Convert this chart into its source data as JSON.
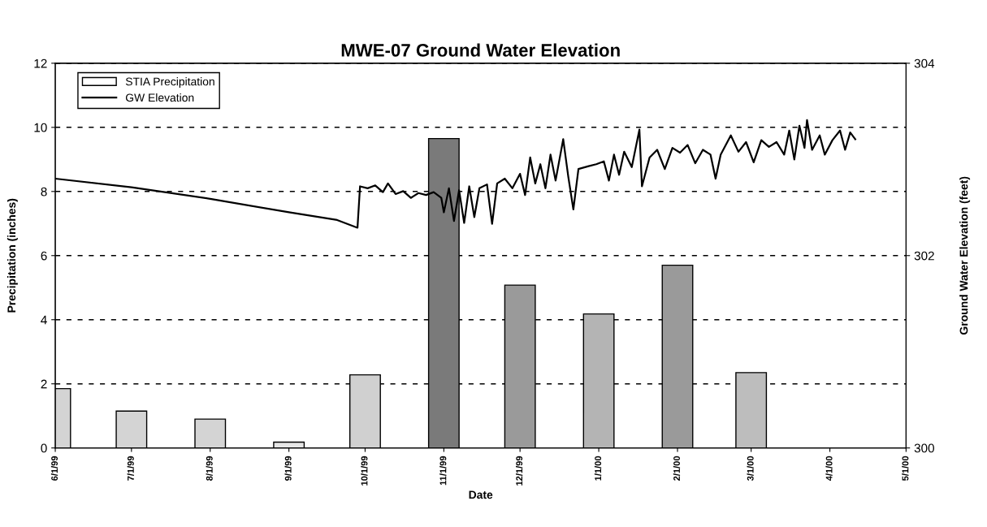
{
  "chart_data": {
    "type": "bar",
    "title": "MWE-07 Ground Water Elevation",
    "xlabel": "Date",
    "ylabel": "Precipitation (inches)",
    "y2label": "Ground Water Elevation (feet)",
    "xlim": [
      "1999-06-01",
      "2000-05-01"
    ],
    "xticks": [
      {
        "value": "1999-06-01",
        "label": "6/1/99"
      },
      {
        "value": "1999-07-01",
        "label": "7/1/99"
      },
      {
        "value": "1999-08-01",
        "label": "8/1/99"
      },
      {
        "value": "1999-09-01",
        "label": "9/1/99"
      },
      {
        "value": "1999-10-01",
        "label": "10/1/99"
      },
      {
        "value": "1999-11-01",
        "label": "11/1/99"
      },
      {
        "value": "1999-12-01",
        "label": "12/1/99"
      },
      {
        "value": "2000-01-01",
        "label": "1/1/00"
      },
      {
        "value": "2000-02-01",
        "label": "2/1/00"
      },
      {
        "value": "2000-03-01",
        "label": "3/1/00"
      },
      {
        "value": "2000-04-01",
        "label": "4/1/00"
      },
      {
        "value": "2000-05-01",
        "label": "5/1/00"
      }
    ],
    "ylim": [
      0,
      12
    ],
    "yticks": [
      0,
      2,
      4,
      6,
      8,
      10,
      12
    ],
    "y2lim": [
      300,
      304
    ],
    "y2ticks": [
      300,
      302,
      304
    ],
    "grid": "y",
    "legend": "top left",
    "series": [
      {
        "name": "STIA Precipitation",
        "x": [
          "1999-06-01",
          "1999-07-01",
          "1999-08-01",
          "1999-09-01",
          "1999-10-01",
          "1999-11-01",
          "1999-12-01",
          "2000-01-01",
          "2000-02-01",
          "2000-03-01"
        ],
        "values": [
          1.85,
          1.15,
          0.9,
          0.18,
          2.28,
          9.65,
          5.08,
          4.18,
          5.7,
          2.35
        ],
        "colors": [
          "#d4d4d4",
          "#d4d4d4",
          "#d4d4d4",
          "#e6e6e6",
          "#d0d0d0",
          "#7a7a7a",
          "#9a9a9a",
          "#b4b4b4",
          "#9a9a9a",
          "#bdbdbd"
        ]
      },
      {
        "name": "GW Elevation",
        "type": "line",
        "axis": "y2",
        "color": "#000000",
        "x": [
          "1999-06-01",
          "1999-07-01",
          "1999-08-01",
          "1999-09-01",
          "1999-09-20",
          "1999-09-28",
          "1999-09-29",
          "1999-10-02",
          "1999-10-05",
          "1999-10-08",
          "1999-10-10",
          "1999-10-13",
          "1999-10-16",
          "1999-10-19",
          "1999-10-22",
          "1999-10-25",
          "1999-10-28",
          "1999-10-31",
          "1999-11-01",
          "1999-11-03",
          "1999-11-05",
          "1999-11-07",
          "1999-11-09",
          "1999-11-11",
          "1999-11-13",
          "1999-11-15",
          "1999-11-18",
          "1999-11-20",
          "1999-11-22",
          "1999-11-25",
          "1999-11-28",
          "1999-12-01",
          "1999-12-03",
          "1999-12-05",
          "1999-12-07",
          "1999-12-09",
          "1999-12-11",
          "1999-12-13",
          "1999-12-15",
          "1999-12-18",
          "1999-12-20",
          "1999-12-22",
          "1999-12-24",
          "1999-12-28",
          "1999-12-31",
          "2000-01-03",
          "2000-01-05",
          "2000-01-07",
          "2000-01-09",
          "2000-01-11",
          "2000-01-14",
          "2000-01-17",
          "2000-01-18",
          "2000-01-21",
          "2000-01-24",
          "2000-01-27",
          "2000-01-30",
          "2000-02-02",
          "2000-02-05",
          "2000-02-08",
          "2000-02-11",
          "2000-02-14",
          "2000-02-16",
          "2000-02-18",
          "2000-02-22",
          "2000-02-25",
          "2000-02-28",
          "2000-03-02",
          "2000-03-05",
          "2000-03-08",
          "2000-03-11",
          "2000-03-14",
          "2000-03-16",
          "2000-03-18",
          "2000-03-20",
          "2000-03-22",
          "2000-03-23",
          "2000-03-25",
          "2000-03-28",
          "2000-03-30",
          "2000-04-02",
          "2000-04-05",
          "2000-04-07",
          "2000-04-09",
          "2000-04-11"
        ],
        "values": [
          302.8,
          302.71,
          302.59,
          302.45,
          302.37,
          302.29,
          302.72,
          302.7,
          302.73,
          302.66,
          302.75,
          302.64,
          302.67,
          302.6,
          302.65,
          302.63,
          302.66,
          302.6,
          302.45,
          302.7,
          302.36,
          302.68,
          302.34,
          302.72,
          302.4,
          302.7,
          302.74,
          302.33,
          302.75,
          302.8,
          302.7,
          302.85,
          302.63,
          303.02,
          302.75,
          302.95,
          302.7,
          303.05,
          302.78,
          303.21,
          302.82,
          302.48,
          302.9,
          302.93,
          302.95,
          302.98,
          302.78,
          303.05,
          302.84,
          303.08,
          302.92,
          303.31,
          302.72,
          303.02,
          303.1,
          302.9,
          303.12,
          303.07,
          303.15,
          302.96,
          303.1,
          303.05,
          302.8,
          303.05,
          303.25,
          303.08,
          303.18,
          302.97,
          303.2,
          303.13,
          303.18,
          303.05,
          303.3,
          303.0,
          303.35,
          303.12,
          303.41,
          303.1,
          303.25,
          303.05,
          303.2,
          303.3,
          303.1,
          303.28,
          303.21
        ]
      }
    ]
  }
}
